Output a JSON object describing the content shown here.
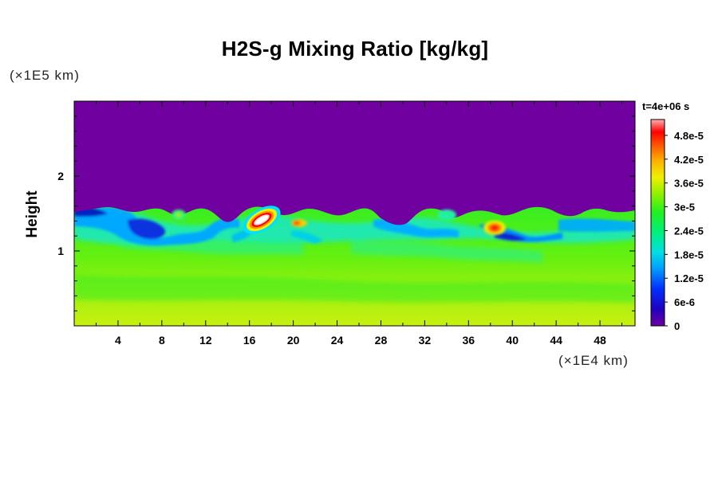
{
  "chart_data": {
    "type": "heatmap",
    "title": "H2S-g Mixing Ratio [kg/kg]",
    "xlabel": "",
    "ylabel": "Height",
    "x_scale_note": "(×1E4 km)",
    "y_scale_note": "(×1E5 km)",
    "time_label": "t=4e+06 s",
    "xlim": [
      0,
      51.2
    ],
    "ylim": [
      0,
      3.0
    ],
    "x_ticks": [
      4,
      8,
      12,
      16,
      20,
      24,
      28,
      32,
      36,
      40,
      44,
      48
    ],
    "y_ticks": [
      1,
      2
    ],
    "colorbar": {
      "min": 0,
      "max": 5.2e-05,
      "labels": [
        "0",
        "6e-6",
        "1.2e-5",
        "1.8e-5",
        "2.4e-5",
        "3e-5",
        "3.6e-5",
        "4.2e-5",
        "4.8e-5"
      ],
      "label_values": [
        0,
        6e-06,
        1.2e-05,
        1.8e-05,
        2.4e-05,
        3e-05,
        3.6e-05,
        4.2e-05,
        4.8e-05
      ]
    },
    "regions": {
      "upper_layer_value": 0,
      "interface_height_approx": 1.55,
      "mixed_layer_value_approx": 2.2e-05,
      "lower_layer_value_approx": 3.2e-05,
      "peak": {
        "x": 17,
        "y": 1.42,
        "value": 5e-05
      },
      "secondary_peak": {
        "x": 38.5,
        "y": 1.35,
        "value": 4e-05
      }
    }
  }
}
